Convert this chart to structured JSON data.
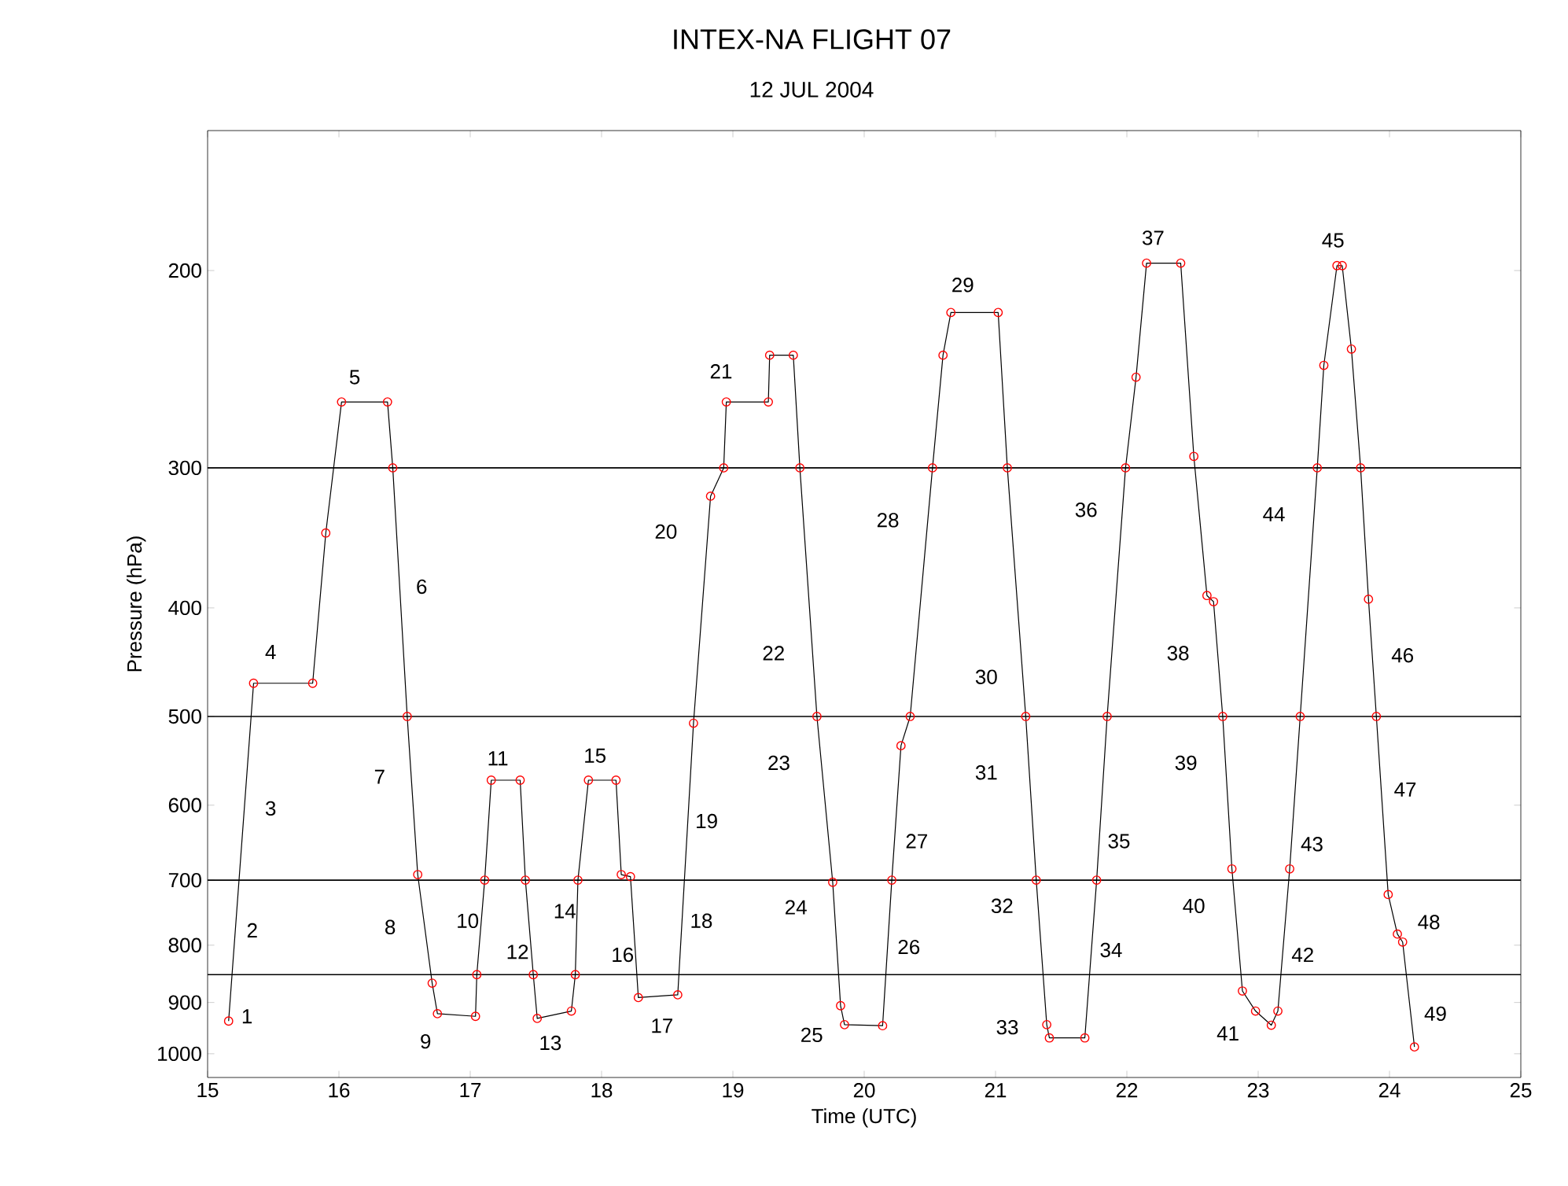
{
  "chart_data": {
    "type": "line",
    "title": "INTEX-NA FLIGHT 07",
    "subtitle": "12 JUL 2004",
    "xlabel": "Time (UTC)",
    "ylabel": "Pressure (hPa)",
    "log": "y",
    "grid": false,
    "marker": "circle",
    "line_style": "solid",
    "xlim": [
      15,
      25
    ],
    "xticks": [
      15,
      16,
      17,
      18,
      19,
      20,
      21,
      22,
      23,
      24,
      25
    ],
    "ylim": [
      1050,
      150
    ],
    "yticks": [
      200,
      300,
      400,
      500,
      600,
      700,
      800,
      900,
      1000
    ],
    "x": [
      15.16,
      15.35,
      15.8,
      15.9,
      16.02,
      16.37,
      16.41,
      16.52,
      16.6,
      16.71,
      16.75,
      17.04,
      17.05,
      17.11,
      17.16,
      17.38,
      17.42,
      17.48,
      17.51,
      17.77,
      17.8,
      17.82,
      17.9,
      18.11,
      18.15,
      18.22,
      18.28,
      18.58,
      18.7,
      18.83,
      18.93,
      18.95,
      19.27,
      19.28,
      19.46,
      19.51,
      19.64,
      19.76,
      19.82,
      19.85,
      20.14,
      20.21,
      20.28,
      20.35,
      20.52,
      20.6,
      20.66,
      21.02,
      21.09,
      21.23,
      21.31,
      21.39,
      21.41,
      21.68,
      21.77,
      21.85,
      21.99,
      22.07,
      22.15,
      22.41,
      22.51,
      22.61,
      22.66,
      22.73,
      22.8,
      22.88,
      22.98,
      23.1,
      23.15,
      23.24,
      23.32,
      23.45,
      23.5,
      23.6,
      23.64,
      23.71,
      23.78,
      23.84,
      23.9,
      23.99,
      24.06,
      24.1,
      24.19
    ],
    "series": [
      {
        "color": "#ff0000",
        "values": [
          935,
          467,
          467,
          343,
          262,
          262,
          300,
          500,
          692,
          865,
          921,
          926,
          850,
          700,
          570,
          570,
          700,
          850,
          930,
          916,
          850,
          700,
          570,
          570,
          692,
          695,
          891,
          886,
          507,
          318,
          300,
          262,
          262,
          238,
          238,
          300,
          500,
          703,
          906,
          942,
          944,
          700,
          531,
          500,
          300,
          238,
          218,
          218,
          300,
          500,
          700,
          942,
          968,
          968,
          700,
          500,
          300,
          249,
          197,
          197,
          293,
          390,
          395,
          500,
          684,
          879,
          916,
          943,
          916,
          684,
          500,
          300,
          243,
          198,
          198,
          235,
          300,
          393,
          500,
          721,
          782,
          795,
          986
        ]
      }
    ],
    "ref_lines": [
      {
        "axis": "y",
        "value": 300
      },
      {
        "axis": "y",
        "value": 500
      },
      {
        "axis": "y",
        "value": 700
      },
      {
        "axis": "y",
        "value": 850
      }
    ],
    "annotations": [
      "1",
      "2",
      "3",
      "4",
      "5",
      "6",
      "7",
      "8",
      "9",
      "10",
      "11",
      "12",
      "13",
      "14",
      "15",
      "16",
      "17",
      "18",
      "19",
      "20",
      "21",
      "22",
      "23",
      "24",
      "25",
      "26",
      "27",
      "28",
      "29",
      "30",
      "31",
      "32",
      "33",
      "34",
      "35",
      "36",
      "37",
      "38",
      "39",
      "40",
      "41",
      "42",
      "43",
      "44",
      "45",
      "46",
      "47",
      "48",
      "49"
    ]
  }
}
